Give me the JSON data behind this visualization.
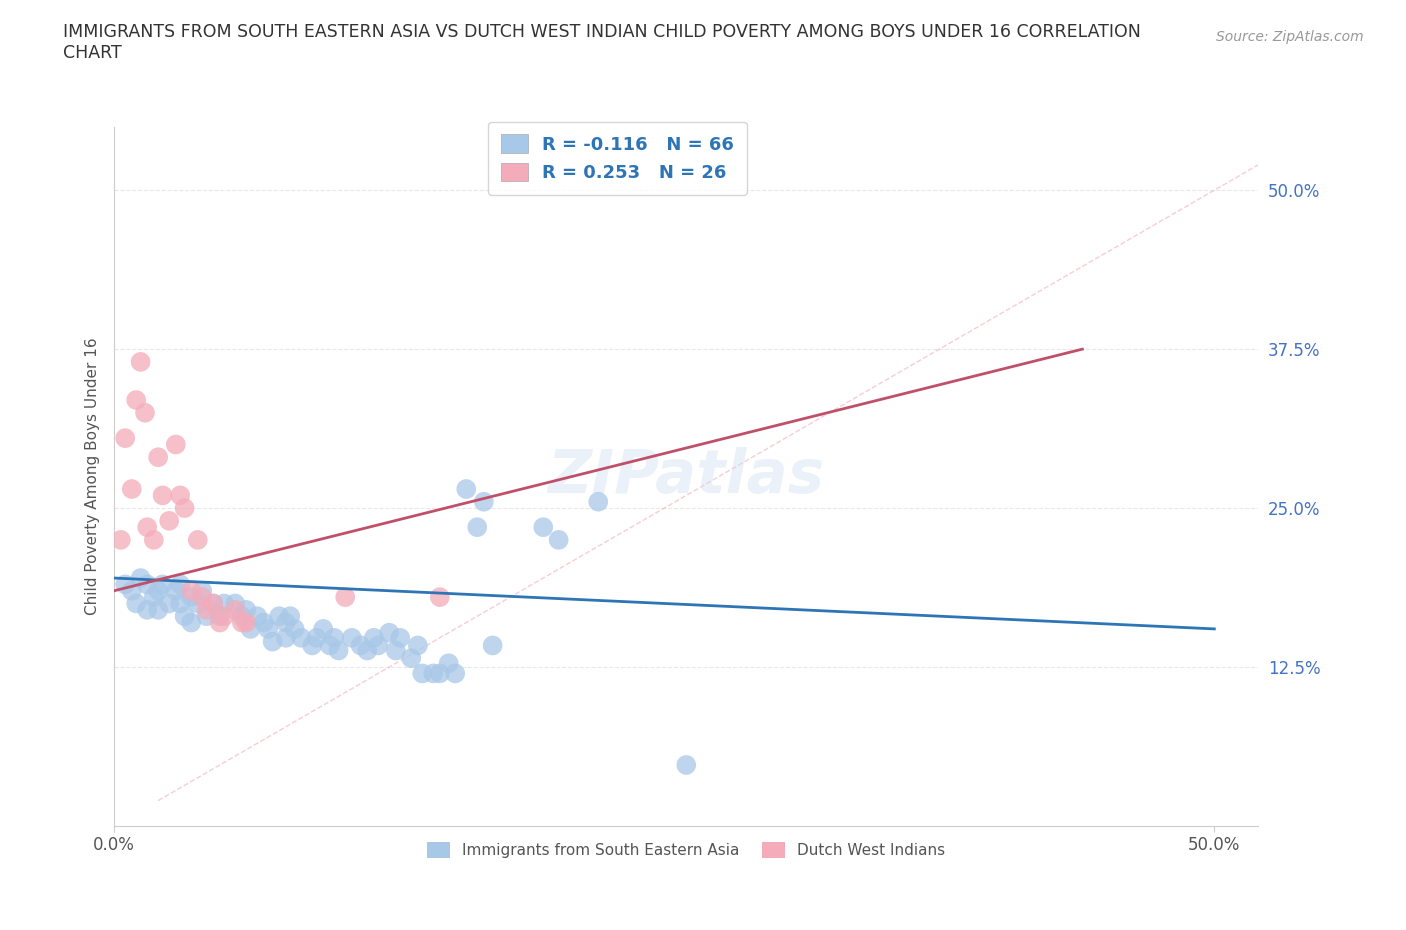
{
  "title": "IMMIGRANTS FROM SOUTH EASTERN ASIA VS DUTCH WEST INDIAN CHILD POVERTY AMONG BOYS UNDER 16 CORRELATION\nCHART",
  "source_text": "Source: ZipAtlas.com",
  "ylabel": "Child Poverty Among Boys Under 16",
  "xlim": [
    0.0,
    0.52
  ],
  "ylim": [
    0.0,
    0.55
  ],
  "xtick_labels": [
    "0.0%",
    "50.0%"
  ],
  "xtick_vals": [
    0.0,
    0.5
  ],
  "ytick_labels": [
    "12.5%",
    "25.0%",
    "37.5%",
    "50.0%"
  ],
  "ytick_vals": [
    0.125,
    0.25,
    0.375,
    0.5
  ],
  "blue_color": "#A8C8E8",
  "pink_color": "#F4ABBA",
  "blue_line_color": "#2E75B6",
  "pink_line_color": "#C0506A",
  "dashed_line_color": "#F4ABBA",
  "legend_text_color": "#2E75B6",
  "R_blue": -0.116,
  "N_blue": 66,
  "R_pink": 0.253,
  "N_pink": 26,
  "blue_scatter": [
    [
      0.005,
      0.19
    ],
    [
      0.008,
      0.185
    ],
    [
      0.01,
      0.175
    ],
    [
      0.012,
      0.195
    ],
    [
      0.015,
      0.19
    ],
    [
      0.015,
      0.17
    ],
    [
      0.018,
      0.18
    ],
    [
      0.02,
      0.185
    ],
    [
      0.02,
      0.17
    ],
    [
      0.022,
      0.19
    ],
    [
      0.025,
      0.175
    ],
    [
      0.028,
      0.185
    ],
    [
      0.03,
      0.19
    ],
    [
      0.03,
      0.175
    ],
    [
      0.032,
      0.165
    ],
    [
      0.035,
      0.18
    ],
    [
      0.035,
      0.16
    ],
    [
      0.038,
      0.175
    ],
    [
      0.04,
      0.185
    ],
    [
      0.042,
      0.165
    ],
    [
      0.045,
      0.175
    ],
    [
      0.048,
      0.165
    ],
    [
      0.05,
      0.175
    ],
    [
      0.055,
      0.175
    ],
    [
      0.058,
      0.165
    ],
    [
      0.06,
      0.17
    ],
    [
      0.062,
      0.155
    ],
    [
      0.065,
      0.165
    ],
    [
      0.068,
      0.16
    ],
    [
      0.07,
      0.155
    ],
    [
      0.072,
      0.145
    ],
    [
      0.075,
      0.165
    ],
    [
      0.078,
      0.16
    ],
    [
      0.078,
      0.148
    ],
    [
      0.08,
      0.165
    ],
    [
      0.082,
      0.155
    ],
    [
      0.085,
      0.148
    ],
    [
      0.09,
      0.142
    ],
    [
      0.092,
      0.148
    ],
    [
      0.095,
      0.155
    ],
    [
      0.098,
      0.142
    ],
    [
      0.1,
      0.148
    ],
    [
      0.102,
      0.138
    ],
    [
      0.108,
      0.148
    ],
    [
      0.112,
      0.142
    ],
    [
      0.115,
      0.138
    ],
    [
      0.118,
      0.148
    ],
    [
      0.12,
      0.142
    ],
    [
      0.125,
      0.152
    ],
    [
      0.128,
      0.138
    ],
    [
      0.13,
      0.148
    ],
    [
      0.135,
      0.132
    ],
    [
      0.138,
      0.142
    ],
    [
      0.14,
      0.12
    ],
    [
      0.145,
      0.12
    ],
    [
      0.148,
      0.12
    ],
    [
      0.152,
      0.128
    ],
    [
      0.155,
      0.12
    ],
    [
      0.16,
      0.265
    ],
    [
      0.165,
      0.235
    ],
    [
      0.168,
      0.255
    ],
    [
      0.172,
      0.142
    ],
    [
      0.195,
      0.235
    ],
    [
      0.202,
      0.225
    ],
    [
      0.22,
      0.255
    ],
    [
      0.26,
      0.048
    ]
  ],
  "pink_scatter": [
    [
      0.003,
      0.225
    ],
    [
      0.005,
      0.305
    ],
    [
      0.008,
      0.265
    ],
    [
      0.01,
      0.335
    ],
    [
      0.012,
      0.365
    ],
    [
      0.014,
      0.325
    ],
    [
      0.015,
      0.235
    ],
    [
      0.018,
      0.225
    ],
    [
      0.02,
      0.29
    ],
    [
      0.022,
      0.26
    ],
    [
      0.025,
      0.24
    ],
    [
      0.028,
      0.3
    ],
    [
      0.03,
      0.26
    ],
    [
      0.032,
      0.25
    ],
    [
      0.035,
      0.185
    ],
    [
      0.038,
      0.225
    ],
    [
      0.04,
      0.18
    ],
    [
      0.042,
      0.17
    ],
    [
      0.045,
      0.175
    ],
    [
      0.048,
      0.16
    ],
    [
      0.05,
      0.165
    ],
    [
      0.055,
      0.17
    ],
    [
      0.058,
      0.16
    ],
    [
      0.06,
      0.16
    ],
    [
      0.105,
      0.18
    ],
    [
      0.148,
      0.18
    ]
  ],
  "blue_trend_x": [
    0.0,
    0.5
  ],
  "blue_trend_y": [
    0.195,
    0.155
  ],
  "pink_trend_x": [
    0.0,
    0.44
  ],
  "pink_trend_y": [
    0.185,
    0.375
  ],
  "dashed_trend_x": [
    0.02,
    0.52
  ],
  "dashed_trend_y": [
    0.02,
    0.52
  ],
  "watermark": "ZIPatlas",
  "background_color": "#FFFFFF",
  "grid_color": "#E8E8E8",
  "ytick_color": "#4472C4"
}
